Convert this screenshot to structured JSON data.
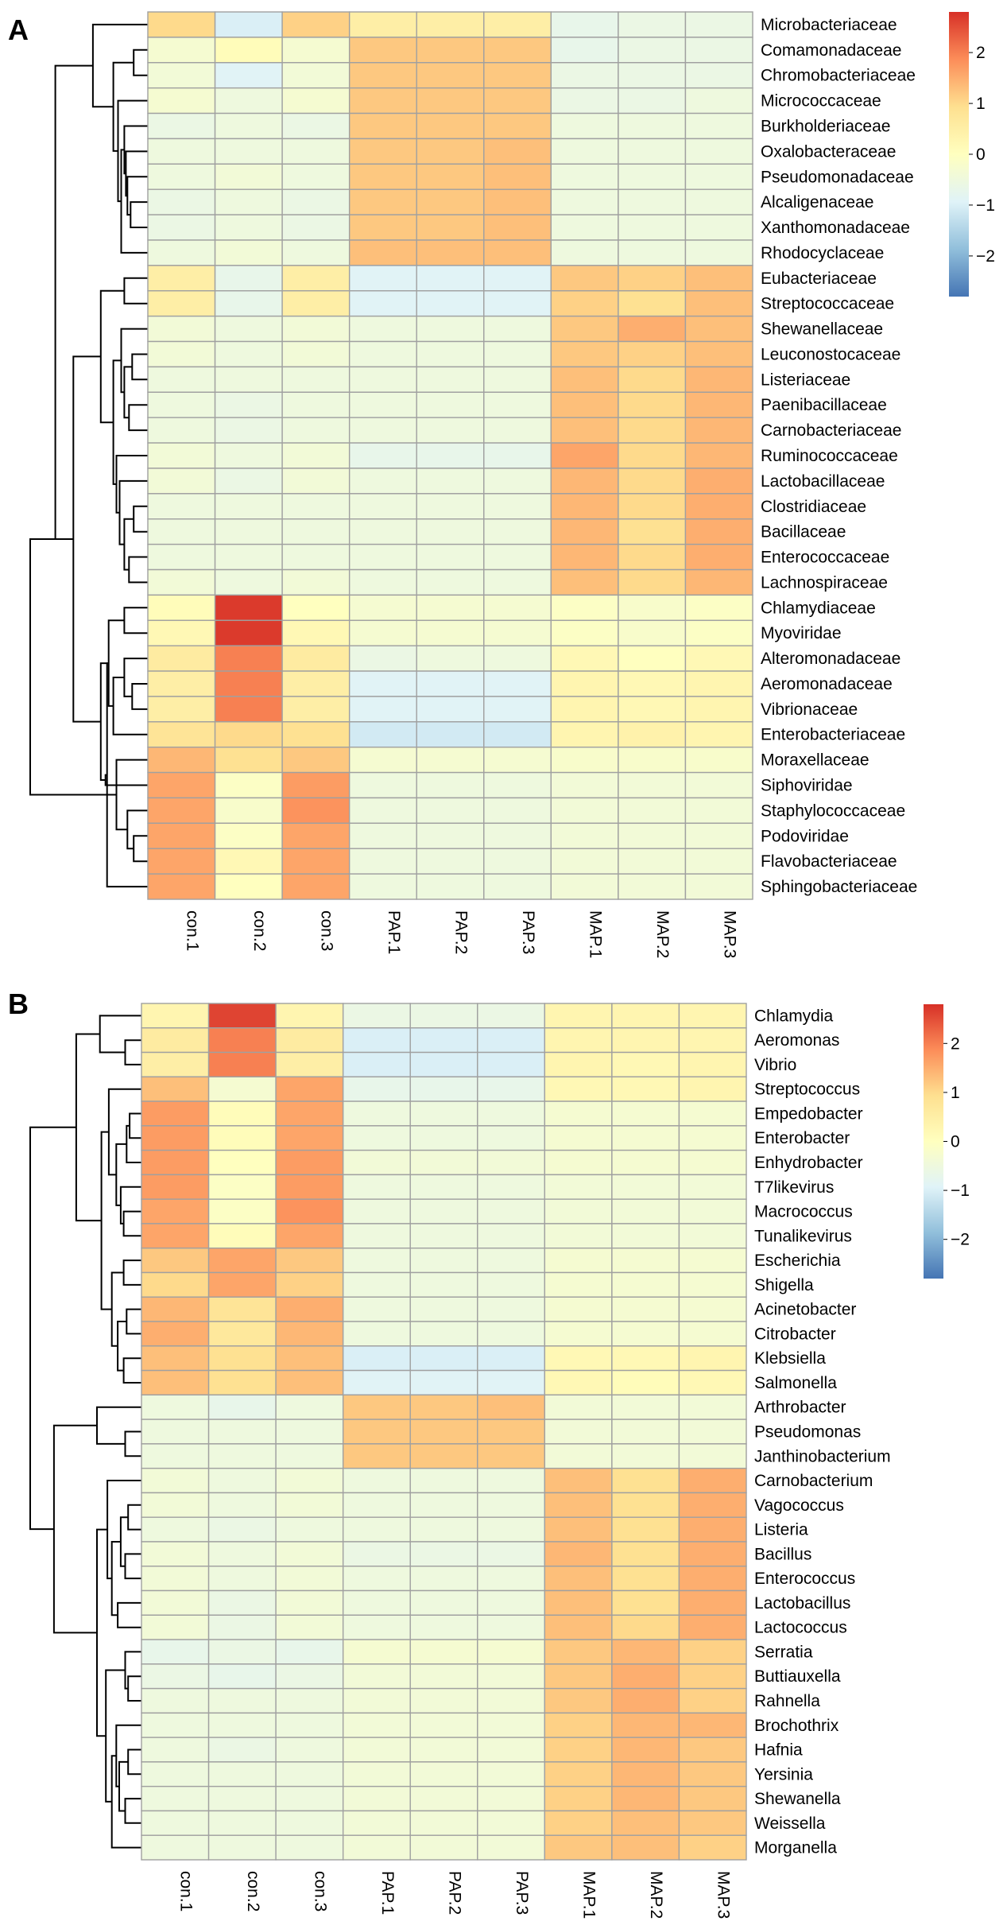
{
  "chart_data": [
    {
      "type": "heatmap",
      "panel": "A",
      "columns": [
        "con.1",
        "con.2",
        "con.3",
        "PAP.1",
        "PAP.2",
        "PAP.3",
        "MAP.1",
        "MAP.2",
        "MAP.3"
      ],
      "rows": [
        "Microbacteriaceae",
        "Comamonadaceae",
        "Chromobacteriaceae",
        "Micrococcaceae",
        "Burkholderiaceae",
        "Oxalobacteraceae",
        "Pseudomonadaceae",
        "Alcaligenaceae",
        "Xanthomonadaceae",
        "Rhodocyclaceae",
        "Eubacteriaceae",
        "Streptococcaceae",
        "Shewanellaceae",
        "Leuconostocaceae",
        "Listeriaceae",
        "Paenibacillaceae",
        "Carnobacteriaceae",
        "Ruminococcaceae",
        "Lactobacillaceae",
        "Clostridiaceae",
        "Bacillaceae",
        "Enterococcaceae",
        "Lachnospiraceae",
        "Chlamydiaceae",
        "Myoviridae",
        "Alteromonadaceae",
        "Aeromonadaceae",
        "Vibrionaceae",
        "Enterobacteriaceae",
        "Moraxellaceae",
        "Siphoviridae",
        "Staphylococcaceae",
        "Podoviridae",
        "Flavobacteriaceae",
        "Sphingobacteriaceae"
      ],
      "values": [
        [
          1.0,
          -1.0,
          1.1,
          0.5,
          0.5,
          0.5,
          -0.7,
          -0.6,
          -0.6
        ],
        [
          -0.3,
          0.1,
          -0.3,
          1.2,
          1.2,
          1.2,
          -0.7,
          -0.6,
          -0.6
        ],
        [
          -0.4,
          -0.9,
          -0.4,
          1.2,
          1.2,
          1.2,
          -0.6,
          -0.6,
          -0.6
        ],
        [
          -0.3,
          -0.5,
          -0.3,
          1.2,
          1.2,
          1.2,
          -0.6,
          -0.6,
          -0.5
        ],
        [
          -0.6,
          -0.5,
          -0.6,
          1.2,
          1.2,
          1.2,
          -0.5,
          -0.5,
          -0.5
        ],
        [
          -0.5,
          -0.5,
          -0.5,
          1.2,
          1.2,
          1.3,
          -0.5,
          -0.5,
          -0.5
        ],
        [
          -0.5,
          -0.4,
          -0.5,
          1.2,
          1.2,
          1.3,
          -0.5,
          -0.5,
          -0.5
        ],
        [
          -0.6,
          -0.5,
          -0.6,
          1.2,
          1.2,
          1.3,
          -0.5,
          -0.5,
          -0.5
        ],
        [
          -0.6,
          -0.5,
          -0.6,
          1.2,
          1.2,
          1.3,
          -0.5,
          -0.5,
          -0.5
        ],
        [
          -0.5,
          -0.4,
          -0.5,
          1.3,
          1.3,
          1.3,
          -0.5,
          -0.5,
          -0.5
        ],
        [
          0.5,
          -0.7,
          0.5,
          -0.9,
          -0.9,
          -0.9,
          1.2,
          1.1,
          1.3
        ],
        [
          0.5,
          -0.7,
          0.5,
          -0.9,
          -0.9,
          -0.9,
          1.1,
          0.9,
          1.3
        ],
        [
          -0.4,
          -0.5,
          -0.4,
          -0.5,
          -0.5,
          -0.5,
          1.2,
          1.5,
          1.3
        ],
        [
          -0.4,
          -0.5,
          -0.4,
          -0.5,
          -0.5,
          -0.5,
          1.2,
          1.1,
          1.3
        ],
        [
          -0.5,
          -0.5,
          -0.5,
          -0.5,
          -0.5,
          -0.5,
          1.3,
          1.0,
          1.4
        ],
        [
          -0.5,
          -0.6,
          -0.5,
          -0.5,
          -0.5,
          -0.5,
          1.3,
          1.0,
          1.4
        ],
        [
          -0.5,
          -0.6,
          -0.5,
          -0.5,
          -0.5,
          -0.5,
          1.3,
          1.0,
          1.4
        ],
        [
          -0.4,
          -0.5,
          -0.4,
          -0.7,
          -0.7,
          -0.7,
          1.6,
          1.0,
          1.4
        ],
        [
          -0.4,
          -0.6,
          -0.4,
          -0.5,
          -0.5,
          -0.5,
          1.4,
          1.0,
          1.5
        ],
        [
          -0.5,
          -0.5,
          -0.5,
          -0.5,
          -0.5,
          -0.5,
          1.4,
          1.0,
          1.5
        ],
        [
          -0.5,
          -0.5,
          -0.5,
          -0.5,
          -0.5,
          -0.5,
          1.4,
          0.9,
          1.5
        ],
        [
          -0.5,
          -0.5,
          -0.5,
          -0.5,
          -0.5,
          -0.5,
          1.4,
          1.0,
          1.5
        ],
        [
          -0.4,
          -0.5,
          -0.4,
          -0.5,
          -0.5,
          -0.5,
          1.3,
          1.0,
          1.4
        ],
        [
          0.1,
          2.7,
          0.0,
          -0.3,
          -0.3,
          -0.3,
          -0.1,
          -0.2,
          -0.1
        ],
        [
          0.2,
          2.7,
          0.2,
          -0.3,
          -0.3,
          -0.3,
          -0.1,
          -0.2,
          -0.1
        ],
        [
          0.6,
          2.0,
          0.6,
          -0.6,
          -0.5,
          -0.5,
          0.2,
          0.0,
          0.2
        ],
        [
          0.5,
          2.0,
          0.5,
          -0.9,
          -0.9,
          -0.9,
          0.3,
          0.2,
          0.3
        ],
        [
          0.5,
          2.0,
          0.5,
          -0.9,
          -0.9,
          -0.9,
          0.3,
          0.2,
          0.3
        ],
        [
          0.8,
          1.0,
          0.9,
          -1.1,
          -1.1,
          -1.1,
          0.3,
          0.4,
          0.3
        ],
        [
          1.4,
          0.9,
          1.2,
          -0.3,
          -0.3,
          -0.3,
          -0.2,
          -0.2,
          -0.2
        ],
        [
          1.6,
          -0.1,
          1.7,
          -0.5,
          -0.5,
          -0.5,
          -0.4,
          -0.4,
          -0.4
        ],
        [
          1.6,
          -0.2,
          1.8,
          -0.5,
          -0.5,
          -0.5,
          -0.4,
          -0.4,
          -0.4
        ],
        [
          1.6,
          -0.1,
          1.6,
          -0.5,
          -0.5,
          -0.5,
          -0.4,
          -0.4,
          -0.4
        ],
        [
          1.6,
          0.2,
          1.6,
          -0.5,
          -0.5,
          -0.5,
          -0.4,
          -0.4,
          -0.4
        ],
        [
          1.6,
          0.0,
          1.6,
          -0.5,
          -0.5,
          -0.5,
          -0.4,
          -0.4,
          -0.4
        ]
      ],
      "color_scale": {
        "min": -2.8,
        "max": 2.8,
        "ticks": [
          2,
          1,
          0,
          -1,
          -2
        ],
        "tick_labels": [
          "2",
          "1",
          "0",
          "−1",
          "−2"
        ]
      }
    },
    {
      "type": "heatmap",
      "panel": "B",
      "columns": [
        "con.1",
        "con.2",
        "con.3",
        "PAP.1",
        "PAP.2",
        "PAP.3",
        "MAP.1",
        "MAP.2",
        "MAP.3"
      ],
      "rows": [
        "Chlamydia",
        "Aeromonas",
        "Vibrio",
        "Streptococcus",
        "Empedobacter",
        "Enterobacter",
        "Enhydrobacter",
        "T7likevirus",
        "Macrococcus",
        "Tunalikevirus",
        "Escherichia",
        "Shigella",
        "Acinetobacter",
        "Citrobacter",
        "Klebsiella",
        "Salmonella",
        "Arthrobacter",
        "Pseudomonas",
        "Janthinobacterium",
        "Carnobacterium",
        "Vagococcus",
        "Listeria",
        "Bacillus",
        "Enterococcus",
        "Lactobacillus",
        "Lactococcus",
        "Serratia",
        "Buttiauxella",
        "Rahnella",
        "Brochothrix",
        "Hafnia",
        "Yersinia",
        "Shewanella",
        "Weissella",
        "Morganella"
      ],
      "values": [
        [
          0.3,
          2.6,
          0.3,
          -0.6,
          -0.6,
          -0.6,
          0.3,
          0.3,
          0.3
        ],
        [
          0.6,
          2.0,
          0.6,
          -1.0,
          -1.0,
          -1.0,
          0.3,
          0.3,
          0.3
        ],
        [
          0.5,
          2.0,
          0.5,
          -1.0,
          -1.0,
          -1.0,
          0.3,
          0.2,
          0.3
        ],
        [
          1.3,
          -0.3,
          1.6,
          -0.7,
          -0.7,
          -0.7,
          0.2,
          0.2,
          0.3
        ],
        [
          1.7,
          0.1,
          1.6,
          -0.5,
          -0.5,
          -0.5,
          -0.3,
          -0.3,
          -0.3
        ],
        [
          1.7,
          0.1,
          1.6,
          -0.5,
          -0.5,
          -0.5,
          -0.3,
          -0.3,
          -0.3
        ],
        [
          1.7,
          0.0,
          1.7,
          -0.4,
          -0.4,
          -0.4,
          -0.3,
          -0.3,
          -0.3
        ],
        [
          1.7,
          -0.1,
          1.7,
          -0.5,
          -0.5,
          -0.5,
          -0.4,
          -0.4,
          -0.4
        ],
        [
          1.6,
          -0.1,
          1.8,
          -0.5,
          -0.5,
          -0.5,
          -0.4,
          -0.4,
          -0.4
        ],
        [
          1.6,
          0.1,
          1.6,
          -0.5,
          -0.5,
          -0.5,
          -0.4,
          -0.4,
          -0.4
        ],
        [
          1.2,
          1.6,
          1.2,
          -0.5,
          -0.5,
          -0.5,
          -0.3,
          -0.3,
          -0.3
        ],
        [
          1.0,
          1.6,
          1.1,
          -0.5,
          -0.5,
          -0.5,
          -0.3,
          -0.3,
          -0.3
        ],
        [
          1.4,
          0.8,
          1.5,
          -0.5,
          -0.5,
          -0.5,
          -0.3,
          -0.3,
          -0.3
        ],
        [
          1.5,
          0.7,
          1.4,
          -0.5,
          -0.5,
          -0.5,
          -0.3,
          -0.3,
          -0.3
        ],
        [
          1.3,
          0.9,
          1.3,
          -1.0,
          -1.0,
          -1.0,
          0.2,
          0.2,
          0.3
        ],
        [
          1.3,
          0.9,
          1.3,
          -0.9,
          -0.9,
          -0.9,
          0.2,
          0.1,
          0.2
        ],
        [
          -0.5,
          -0.7,
          -0.5,
          1.2,
          1.2,
          1.3,
          -0.4,
          -0.4,
          -0.4
        ],
        [
          -0.5,
          -0.5,
          -0.5,
          1.2,
          1.2,
          1.2,
          -0.4,
          -0.4,
          -0.4
        ],
        [
          -0.5,
          -0.5,
          -0.5,
          1.2,
          1.2,
          1.2,
          -0.4,
          -0.4,
          -0.4
        ],
        [
          -0.4,
          -0.5,
          -0.4,
          -0.5,
          -0.5,
          -0.5,
          1.3,
          0.9,
          1.5
        ],
        [
          -0.4,
          -0.5,
          -0.4,
          -0.5,
          -0.5,
          -0.5,
          1.3,
          0.9,
          1.5
        ],
        [
          -0.5,
          -0.6,
          -0.5,
          -0.5,
          -0.5,
          -0.5,
          1.3,
          0.9,
          1.5
        ],
        [
          -0.4,
          -0.5,
          -0.4,
          -0.6,
          -0.6,
          -0.6,
          1.4,
          0.9,
          1.5
        ],
        [
          -0.4,
          -0.5,
          -0.4,
          -0.5,
          -0.5,
          -0.5,
          1.3,
          0.9,
          1.5
        ],
        [
          -0.4,
          -0.6,
          -0.4,
          -0.5,
          -0.5,
          -0.5,
          1.3,
          0.9,
          1.5
        ],
        [
          -0.4,
          -0.6,
          -0.4,
          -0.5,
          -0.5,
          -0.5,
          1.3,
          1.0,
          1.5
        ],
        [
          -0.7,
          -0.6,
          -0.7,
          -0.3,
          -0.3,
          -0.3,
          1.2,
          1.4,
          1.1
        ],
        [
          -0.6,
          -0.7,
          -0.6,
          -0.4,
          -0.4,
          -0.4,
          1.2,
          1.5,
          1.1
        ],
        [
          -0.5,
          -0.5,
          -0.5,
          -0.4,
          -0.4,
          -0.4,
          1.2,
          1.5,
          1.1
        ],
        [
          -0.5,
          -0.5,
          -0.5,
          -0.4,
          -0.4,
          -0.4,
          1.1,
          1.4,
          1.4
        ],
        [
          -0.5,
          -0.6,
          -0.5,
          -0.4,
          -0.4,
          -0.4,
          1.1,
          1.4,
          1.2
        ],
        [
          -0.5,
          -0.5,
          -0.5,
          -0.4,
          -0.4,
          -0.4,
          1.1,
          1.4,
          1.2
        ],
        [
          -0.5,
          -0.5,
          -0.5,
          -0.4,
          -0.4,
          -0.4,
          1.1,
          1.4,
          1.2
        ],
        [
          -0.5,
          -0.5,
          -0.5,
          -0.4,
          -0.4,
          -0.4,
          1.1,
          1.3,
          1.2
        ],
        [
          -0.5,
          -0.5,
          -0.5,
          -0.4,
          -0.4,
          -0.4,
          1.2,
          1.3,
          1.1
        ]
      ],
      "color_scale": {
        "min": -2.8,
        "max": 2.8,
        "ticks": [
          2,
          1,
          0,
          -1,
          -2
        ],
        "tick_labels": [
          "2",
          "1",
          "0",
          "−1",
          "−2"
        ]
      }
    }
  ],
  "colors": {
    "grid_line": "#a0a0a0",
    "dendrogram": "#000000",
    "palette": [
      "#4575b4",
      "#91bfdb",
      "#e0f3f8",
      "#ffffbf",
      "#fee090",
      "#fc8d59",
      "#d73027"
    ]
  }
}
